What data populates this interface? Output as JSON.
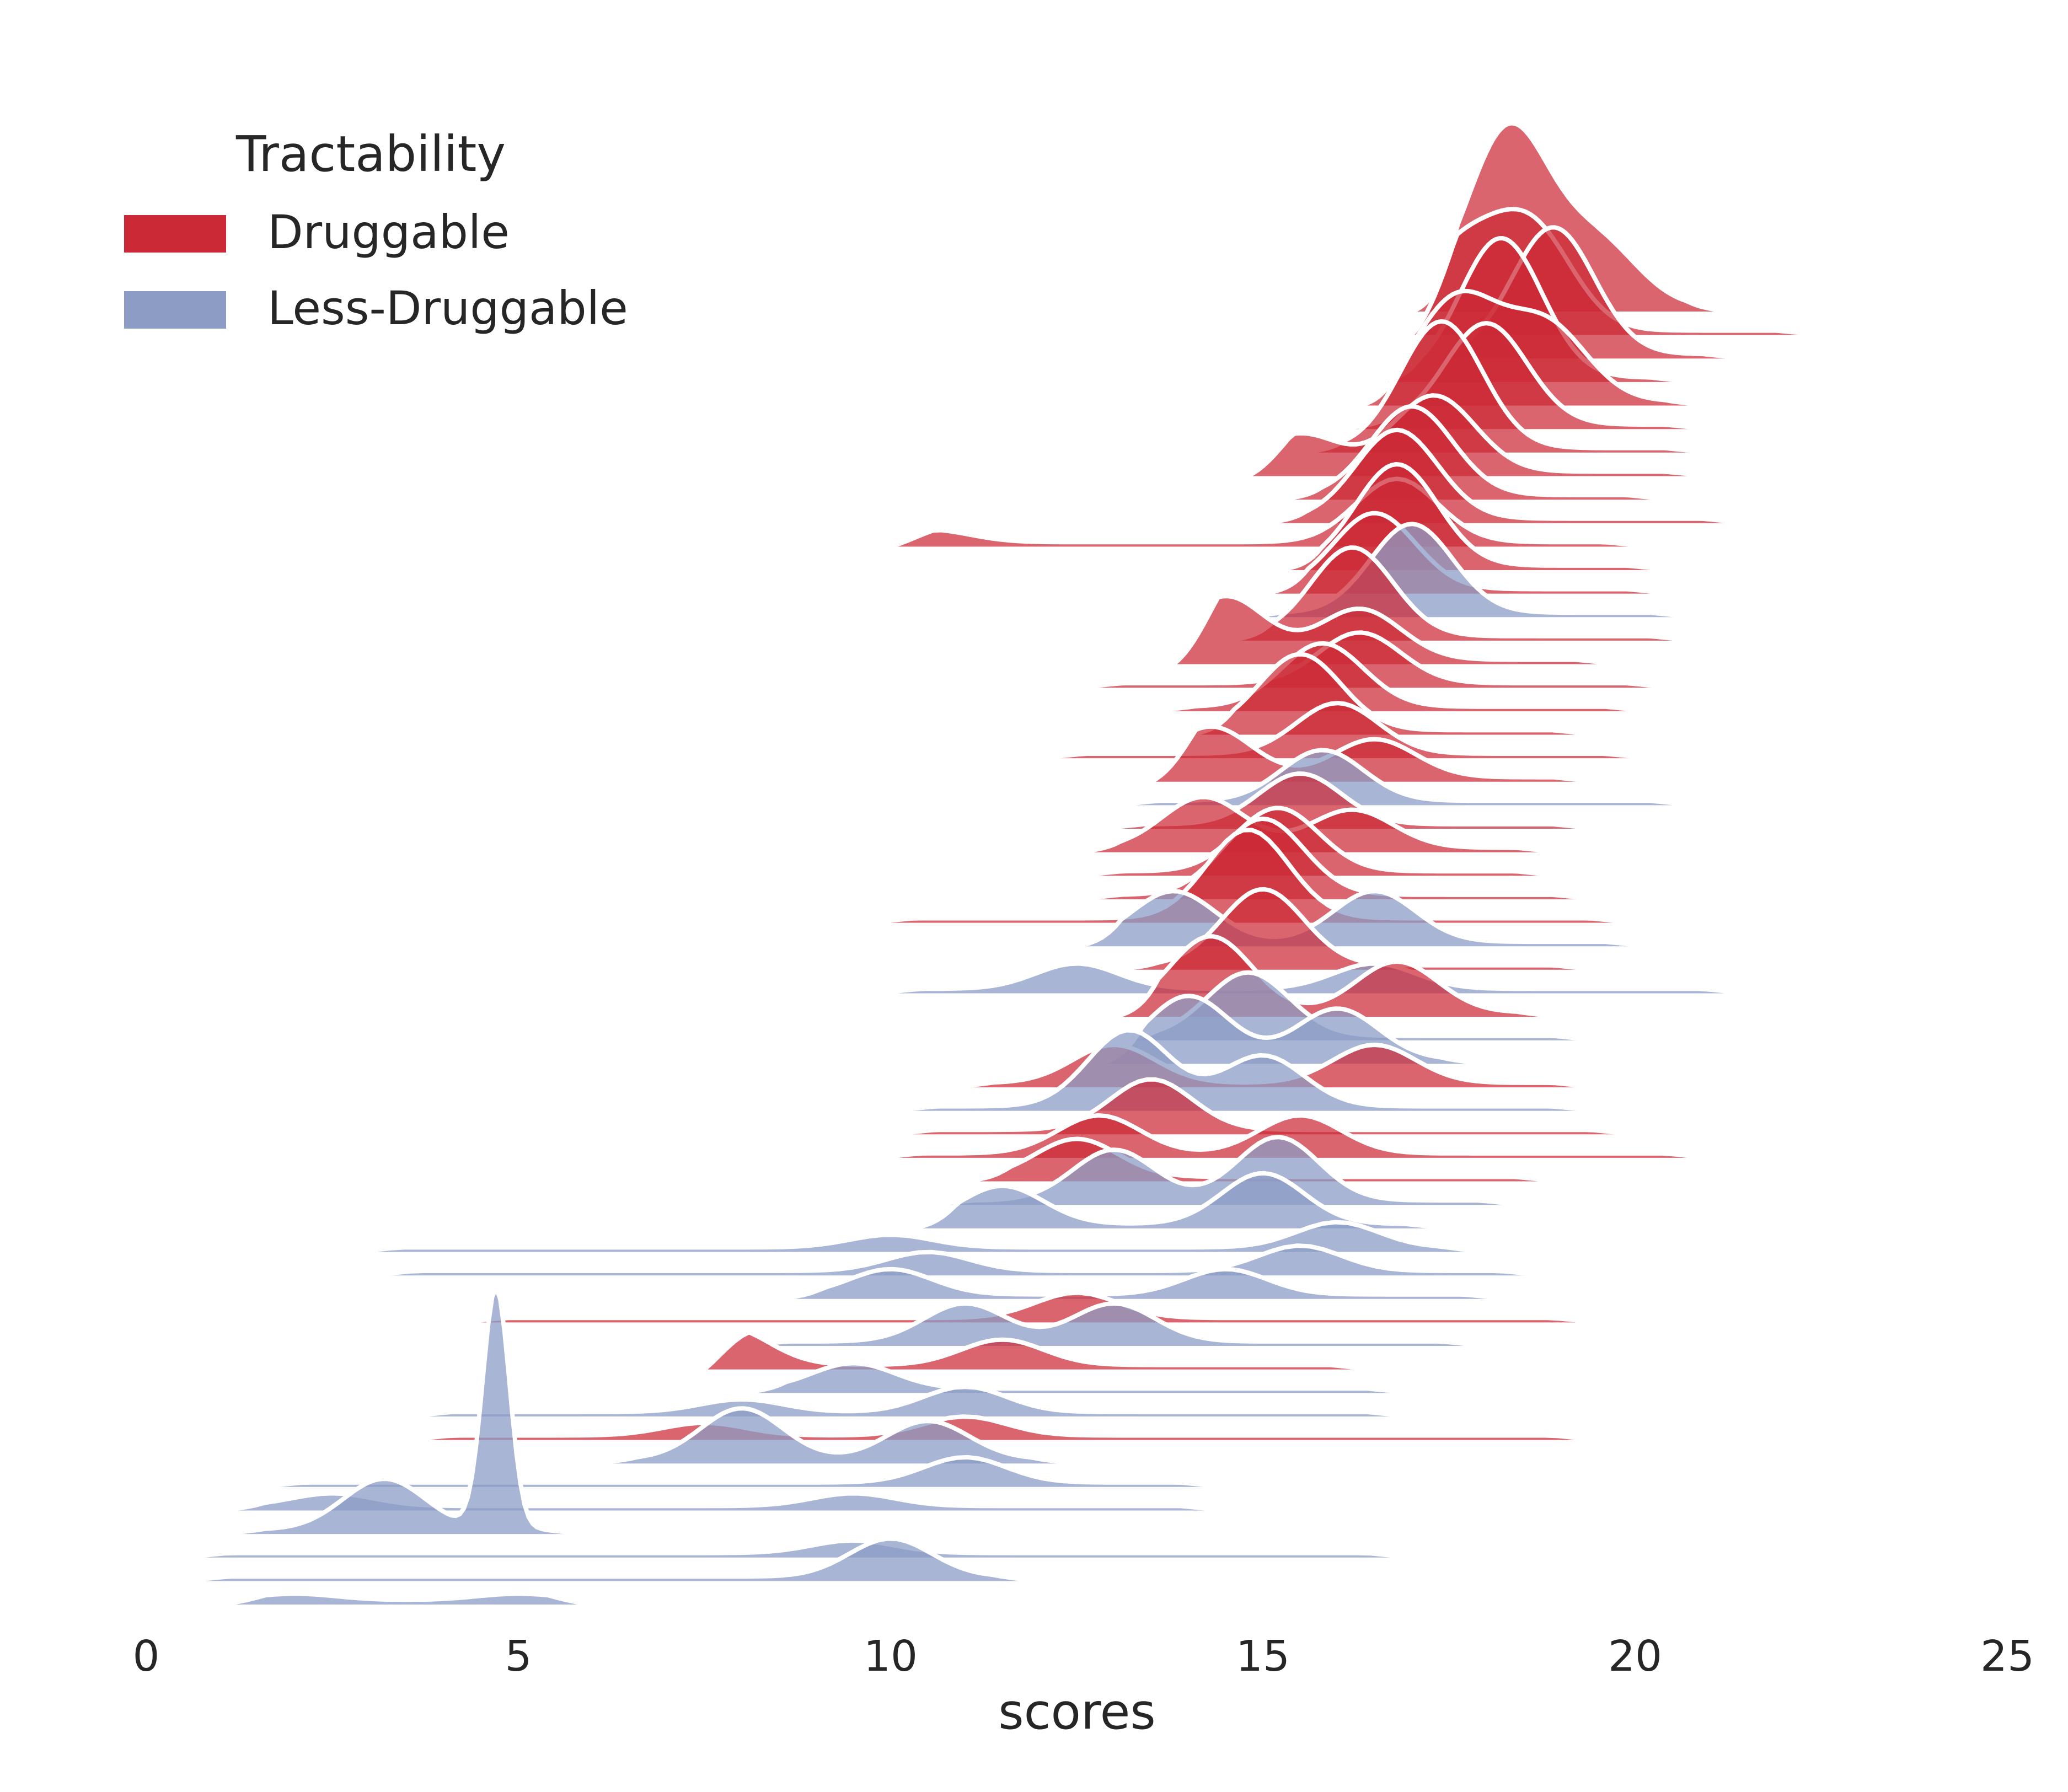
{
  "chart_data": {
    "type": "ridgeline",
    "xlabel": "scores",
    "xlim": [
      0,
      25
    ],
    "x_ticks": [
      0,
      5,
      10,
      15,
      20,
      25
    ],
    "grid": false,
    "legend": {
      "title": "Tractability",
      "placement": "top-left",
      "entries": [
        {
          "label": "Druggable",
          "color": "#cc2936"
        },
        {
          "label": "Less-Druggable",
          "color": "#8c9cc5"
        }
      ]
    },
    "series": [
      {
        "group": "Druggable",
        "peaks": [
          [
            18.3,
            1.4
          ],
          [
            19.5,
            0.5
          ]
        ],
        "range": [
          17.0,
          21.3
        ]
      },
      {
        "group": "Druggable",
        "peaks": [
          [
            17.6,
            0.6
          ],
          [
            18.6,
            0.8
          ]
        ],
        "range": [
          17.0,
          22.5
        ]
      },
      {
        "group": "Druggable",
        "peaks": [
          [
            18.9,
            1.0
          ]
        ],
        "range": [
          17.2,
          21.5
        ]
      },
      {
        "group": "Druggable",
        "peaks": [
          [
            18.2,
            1.1
          ]
        ],
        "range": [
          16.5,
          20.8
        ]
      },
      {
        "group": "Druggable",
        "peaks": [
          [
            17.6,
            0.8
          ],
          [
            18.8,
            0.6
          ]
        ],
        "range": [
          16.3,
          21.0
        ]
      },
      {
        "group": "Druggable",
        "peaks": [
          [
            18.0,
            0.8
          ]
        ],
        "range": [
          16.0,
          21.0
        ]
      },
      {
        "group": "Druggable",
        "peaks": [
          [
            17.4,
            1.0
          ]
        ],
        "range": [
          15.5,
          21.0
        ]
      },
      {
        "group": "Druggable",
        "peaks": [
          [
            15.5,
            0.3
          ],
          [
            17.3,
            0.6
          ]
        ],
        "range": [
          14.8,
          21.0
        ]
      },
      {
        "group": "Druggable",
        "peaks": [
          [
            17.0,
            0.7
          ]
        ],
        "range": [
          15.2,
          20.5
        ]
      },
      {
        "group": "Druggable",
        "peaks": [
          [
            16.8,
            0.7
          ]
        ],
        "range": [
          15.0,
          21.5
        ]
      },
      {
        "group": "Druggable",
        "peaks": [
          [
            10.5,
            0.1
          ],
          [
            16.8,
            0.5
          ]
        ],
        "range": [
          10.0,
          20.2
        ]
      },
      {
        "group": "Druggable",
        "peaks": [
          [
            16.8,
            0.8
          ]
        ],
        "range": [
          15.2,
          20.5
        ]
      },
      {
        "group": "Druggable",
        "peaks": [
          [
            16.5,
            0.6
          ]
        ],
        "range": [
          15.0,
          20.5
        ]
      },
      {
        "group": "Less-Druggable",
        "peaks": [
          [
            17.0,
            0.7
          ]
        ],
        "range": [
          14.7,
          20.8
        ]
      },
      {
        "group": "Druggable",
        "peaks": [
          [
            16.2,
            0.7
          ]
        ],
        "range": [
          14.5,
          20.8
        ]
      },
      {
        "group": "Druggable",
        "peaks": [
          [
            14.5,
            0.5
          ],
          [
            16.3,
            0.4
          ]
        ],
        "range": [
          13.8,
          19.8
        ]
      },
      {
        "group": "Druggable",
        "peaks": [
          [
            16.3,
            0.4
          ]
        ],
        "range": [
          12.5,
          20.5
        ]
      },
      {
        "group": "Druggable",
        "peaks": [
          [
            15.8,
            0.5
          ]
        ],
        "range": [
          13.5,
          20.2
        ]
      },
      {
        "group": "Druggable",
        "peaks": [
          [
            15.5,
            0.6
          ]
        ],
        "range": [
          14.0,
          19.5
        ]
      },
      {
        "group": "Druggable",
        "peaks": [
          [
            16.0,
            0.4
          ]
        ],
        "range": [
          12.0,
          20.2
        ]
      },
      {
        "group": "Druggable",
        "peaks": [
          [
            14.3,
            0.4
          ],
          [
            16.5,
            0.3
          ]
        ],
        "range": [
          13.5,
          19.5
        ]
      },
      {
        "group": "Less-Druggable",
        "peaks": [
          [
            15.8,
            0.4
          ]
        ],
        "range": [
          13.0,
          20.8
        ]
      },
      {
        "group": "Druggable",
        "peaks": [
          [
            15.5,
            0.4
          ]
        ],
        "range": [
          12.8,
          19.5
        ]
      },
      {
        "group": "Druggable",
        "peaks": [
          [
            14.2,
            0.4
          ],
          [
            16.2,
            0.3
          ]
        ],
        "range": [
          12.5,
          19.0
        ]
      },
      {
        "group": "Druggable",
        "peaks": [
          [
            15.2,
            0.5
          ]
        ],
        "range": [
          12.5,
          19.0
        ]
      },
      {
        "group": "Druggable",
        "peaks": [
          [
            15.0,
            0.6
          ]
        ],
        "range": [
          12.5,
          19.5
        ]
      },
      {
        "group": "Druggable",
        "peaks": [
          [
            14.8,
            0.7
          ]
        ],
        "range": [
          9.7,
          20.0
        ]
      },
      {
        "group": "Less-Druggable",
        "peaks": [
          [
            13.8,
            0.4
          ],
          [
            16.5,
            0.4
          ]
        ],
        "range": [
          12.5,
          20.2
        ]
      },
      {
        "group": "Druggable",
        "peaks": [
          [
            15.0,
            0.6
          ]
        ],
        "range": [
          13.0,
          19.5
        ]
      },
      {
        "group": "Less-Druggable",
        "peaks": [
          [
            12.5,
            0.2
          ],
          [
            16.5,
            0.2
          ]
        ],
        "range": [
          9.8,
          21.5
        ]
      },
      {
        "group": "Druggable",
        "peaks": [
          [
            14.3,
            0.6
          ],
          [
            16.8,
            0.4
          ]
        ],
        "range": [
          13.0,
          19.0
        ]
      },
      {
        "group": "Less-Druggable",
        "peaks": [
          [
            14.8,
            0.5
          ]
        ],
        "range": [
          13.0,
          19.5
        ]
      },
      {
        "group": "Less-Druggable",
        "peaks": [
          [
            14.0,
            0.5
          ],
          [
            16.0,
            0.4
          ]
        ],
        "range": [
          12.8,
          18.0
        ]
      },
      {
        "group": "Druggable",
        "peaks": [
          [
            13.0,
            0.3
          ],
          [
            16.5,
            0.3
          ]
        ],
        "range": [
          10.8,
          19.5
        ]
      },
      {
        "group": "Less-Druggable",
        "peaks": [
          [
            13.2,
            0.6
          ],
          [
            15.0,
            0.4
          ]
        ],
        "range": [
          10.0,
          19.5
        ]
      },
      {
        "group": "Druggable",
        "peaks": [
          [
            13.5,
            0.4
          ]
        ],
        "range": [
          10.0,
          20.0
        ]
      },
      {
        "group": "Druggable",
        "peaks": [
          [
            12.8,
            0.3
          ],
          [
            15.5,
            0.3
          ]
        ],
        "range": [
          9.8,
          21.0
        ]
      },
      {
        "group": "Druggable",
        "peaks": [
          [
            12.5,
            0.3
          ]
        ],
        "range": [
          11.0,
          19.0
        ]
      },
      {
        "group": "Less-Druggable",
        "peaks": [
          [
            13.0,
            0.4
          ],
          [
            15.2,
            0.5
          ]
        ],
        "range": [
          10.5,
          18.5
        ]
      },
      {
        "group": "Less-Druggable",
        "peaks": [
          [
            11.5,
            0.3
          ],
          [
            15.0,
            0.4
          ]
        ],
        "range": [
          10.3,
          17.5
        ]
      },
      {
        "group": "Less-Druggable",
        "peaks": [
          [
            10.0,
            0.1
          ],
          [
            16.0,
            0.2
          ]
        ],
        "range": [
          2.8,
          18.0
        ]
      },
      {
        "group": "Less-Druggable",
        "peaks": [
          [
            10.5,
            0.15
          ],
          [
            15.5,
            0.2
          ]
        ],
        "range": [
          3.0,
          18.8
        ]
      },
      {
        "group": "Less-Druggable",
        "peaks": [
          [
            10.0,
            0.2
          ],
          [
            14.5,
            0.2
          ]
        ],
        "range": [
          8.5,
          18.3
        ]
      },
      {
        "group": "Druggable",
        "peaks": [
          [
            12.5,
            0.2
          ]
        ],
        "range": [
          4.2,
          19.5
        ]
      },
      {
        "group": "Less-Druggable",
        "peaks": [
          [
            11.0,
            0.3
          ],
          [
            13.0,
            0.3
          ]
        ],
        "range": [
          8.0,
          18.0
        ]
      },
      {
        "group": "Druggable",
        "peaks": [
          [
            7.8,
            0.3
          ],
          [
            11.5,
            0.2
          ]
        ],
        "range": [
          7.5,
          16.5
        ]
      },
      {
        "group": "Less-Druggable",
        "peaks": [
          [
            9.5,
            0.2
          ]
        ],
        "range": [
          8.0,
          17.0
        ]
      },
      {
        "group": "Less-Druggable",
        "peaks": [
          [
            8.0,
            0.1
          ],
          [
            11.0,
            0.2
          ]
        ],
        "range": [
          3.5,
          17.0
        ]
      },
      {
        "group": "Druggable",
        "peaks": [
          [
            7.5,
            0.1
          ],
          [
            11.0,
            0.15
          ]
        ],
        "range": [
          3.5,
          19.5
        ]
      },
      {
        "group": "Less-Druggable",
        "peaks": [
          [
            8.0,
            0.4
          ],
          [
            10.5,
            0.3
          ]
        ],
        "range": [
          6.0,
          12.5
        ]
      },
      {
        "group": "Less-Druggable",
        "peaks": [
          [
            11.0,
            0.2
          ]
        ],
        "range": [
          1.5,
          14.5
        ]
      },
      {
        "group": "Less-Druggable",
        "peaks": [
          [
            2.5,
            0.1
          ],
          [
            9.5,
            0.1
          ]
        ],
        "range": [
          1.0,
          14.5
        ]
      },
      {
        "group": "Less-Druggable",
        "peaks": [
          [
            3.2,
            0.4
          ],
          [
            4.7,
            1.9
          ]
        ],
        "range": [
          1.0,
          5.9
        ]
      },
      {
        "group": "Less-Druggable",
        "peaks": [
          [
            9.5,
            0.1
          ]
        ],
        "range": [
          0.5,
          17.0
        ]
      },
      {
        "group": "Less-Druggable",
        "peaks": [
          [
            10.0,
            0.3
          ]
        ],
        "range": [
          0.5,
          12.0
        ]
      },
      {
        "group": "Less-Druggable",
        "peaks": [
          [
            2.0,
            0.05
          ],
          [
            5.0,
            0.05
          ]
        ],
        "range": [
          1.0,
          6.0
        ]
      }
    ]
  }
}
